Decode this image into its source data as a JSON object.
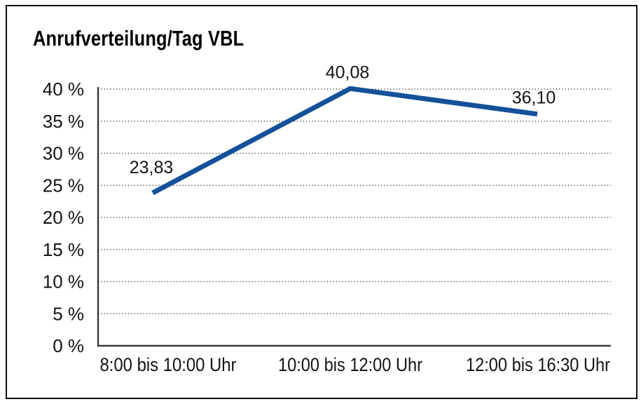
{
  "header": {
    "title": "Anrufverteilung/Tag VBL"
  },
  "chart_data": {
    "type": "line",
    "title": "Anrufverteilung/Tag VBL",
    "categories": [
      "8:00 bis 10:00 Uhr",
      "10:00 bis 12:00 Uhr",
      "12:00 bis 16:30 Uhr"
    ],
    "values": [
      23.83,
      40.08,
      36.1
    ],
    "value_labels": [
      "23,83",
      "40,08",
      "36,10"
    ],
    "xlabel": "",
    "ylabel": "",
    "ylim": [
      0,
      40
    ],
    "ytick_step": 5,
    "ytick_labels": [
      "0 %",
      "5 %",
      "10 %",
      "15 %",
      "20 %",
      "25 %",
      "30 %",
      "35 %",
      "40 %"
    ],
    "grid": "horizontal dotted gridlines at each 5% step",
    "legend_position": "none",
    "line_color": "#14519A",
    "grid_color": "#3f3f3f",
    "axis_color": "#3a3a3a",
    "text_color": "#141414",
    "background_color": "#ffffff",
    "border_color": "#101010"
  }
}
